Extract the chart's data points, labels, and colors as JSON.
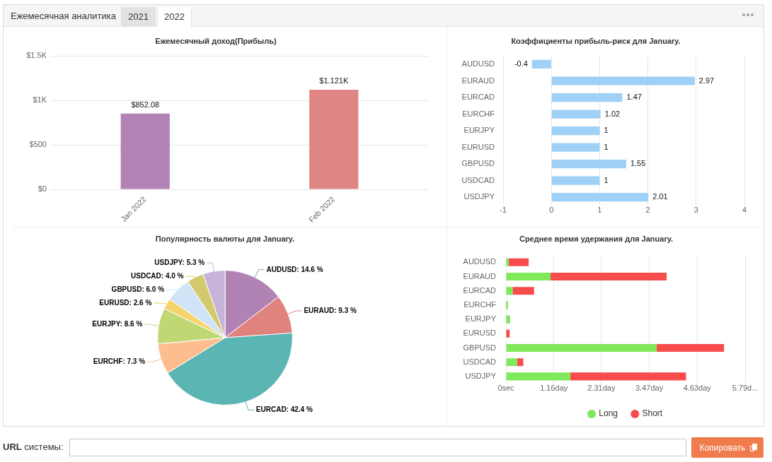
{
  "chart_data": [
    {
      "type": "other",
      "annotations": [
        "Ежемесячная аналитика",
        "2021",
        "2022"
      ]
    },
    {
      "type": "bar",
      "title": "Ежемесячный доход(Прибыль)",
      "categories": [
        "Jan 2022",
        "Feb 2022"
      ],
      "values": [
        852.08,
        1121
      ],
      "colors": [
        "#b383b5",
        "#e08585"
      ],
      "value_labels": [
        "$852.08",
        "$1.121K"
      ],
      "ylim": [
        0,
        1500
      ],
      "yticks": [
        {
          "value": 0,
          "label": "$0"
        },
        {
          "value": 500,
          "label": "$500"
        },
        {
          "value": 1000,
          "label": "$1K"
        },
        {
          "value": 1500,
          "label": "$1.5K"
        }
      ],
      "grid": "y"
    },
    {
      "type": "bar",
      "orientation": "horizontal",
      "title": "Коэффициенты прибыль-риск для January.",
      "categories": [
        "AUDUSD",
        "EURAUD",
        "EURCAD",
        "EURCHF",
        "EURJPY",
        "EURUSD",
        "GBPUSD",
        "USDCAD",
        "USDJPY"
      ],
      "values": [
        -0.4,
        2.97,
        1.47,
        1.02,
        1,
        1,
        1.55,
        1,
        2.01
      ],
      "color": "#9fd0f5",
      "xlim": [
        -1,
        4
      ],
      "xticks": [
        -1,
        0,
        1,
        2,
        3,
        4
      ],
      "grid": "x",
      "data_labels": true
    },
    {
      "type": "pie",
      "title": "Популярность валюты для January.",
      "categories": [
        "AUDUSD",
        "EURAUD",
        "EURCAD",
        "EURCHF",
        "EURJPY",
        "EURUSD",
        "GBPUSD",
        "USDCAD",
        "USDJPY"
      ],
      "values": [
        14.6,
        9.3,
        42.4,
        7.3,
        8.6,
        2.6,
        6.0,
        4.0,
        5.3
      ],
      "colors": [
        "#b183b4",
        "#e0837f",
        "#5bb5b3",
        "#fdbd8e",
        "#bfd873",
        "#f6d36b",
        "#cfe5f7",
        "#d5c96d",
        "#c6b5d9"
      ],
      "value_labels": [
        "14.6 %",
        "9.3 %",
        "42.4 %",
        "7.3 %",
        "8.6 %",
        "2.6 %",
        "6.0 %",
        "4.0 %",
        "5.3 %"
      ]
    },
    {
      "type": "bar",
      "orientation": "horizontal",
      "stacked": true,
      "title": "Среднее время удержания для January.",
      "categories": [
        "AUDUSD",
        "EURAUD",
        "EURCAD",
        "EURCHF",
        "EURJPY",
        "EURUSD",
        "GBPUSD",
        "USDCAD",
        "USDJPY"
      ],
      "series": [
        {
          "name": "Long",
          "color": "#7fe85b",
          "values": [
            0.07,
            1.08,
            0.16,
            0.05,
            0.1,
            0,
            3.65,
            0.27,
            1.56
          ]
        },
        {
          "name": "Short",
          "color": "#f84c4c",
          "values": [
            0.48,
            2.81,
            0.52,
            0,
            0,
            0.09,
            1.63,
            0.15,
            2.8
          ]
        }
      ],
      "xlim": [
        0,
        5.79
      ],
      "xticks": [
        {
          "value": 0,
          "label": "0sec"
        },
        {
          "value": 1.16,
          "label": "1.16day"
        },
        {
          "value": 2.31,
          "label": "2.31day"
        },
        {
          "value": 3.47,
          "label": "3.47day"
        },
        {
          "value": 4.63,
          "label": "4.63day"
        },
        {
          "value": 5.79,
          "label": "5.79d..."
        }
      ],
      "grid": "x",
      "legend": "bottom"
    },
    {
      "type": "other",
      "annotations": [
        "URL системы:",
        "Копировать"
      ]
    }
  ]
}
